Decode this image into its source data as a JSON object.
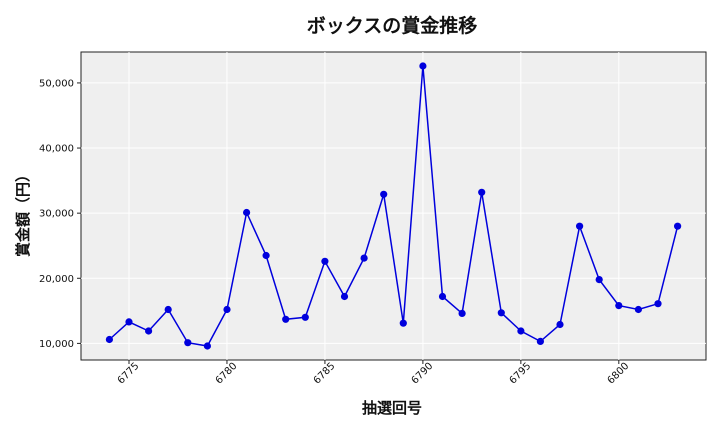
{
  "chart_data": {
    "type": "line",
    "title": "ボックスの賞金推移",
    "xlabel": "抽選回号",
    "ylabel": "賞金額（円）",
    "x": [
      6774,
      6775,
      6776,
      6777,
      6778,
      6779,
      6780,
      6781,
      6782,
      6783,
      6784,
      6785,
      6786,
      6787,
      6788,
      6789,
      6790,
      6791,
      6792,
      6793,
      6794,
      6795,
      6796,
      6797,
      6798,
      6799,
      6800,
      6801,
      6802,
      6803
    ],
    "series": [
      {
        "values": [
          10600,
          13300,
          11900,
          15200,
          10100,
          9600,
          15200,
          30100,
          23500,
          13700,
          14000,
          22600,
          17200,
          23100,
          32900,
          13100,
          52600,
          17200,
          14600,
          33200,
          14700,
          11900,
          10300,
          12900,
          28000,
          19800,
          15800,
          15200,
          16100,
          28000
        ]
      }
    ],
    "xticks": [
      6775,
      6780,
      6785,
      6790,
      6795,
      6800
    ],
    "xtick_labels": [
      "6775",
      "6780",
      "6785",
      "6790",
      "6795",
      "6800"
    ],
    "yticks": [
      10000,
      20000,
      30000,
      40000,
      50000
    ],
    "ytick_labels": [
      "10,000",
      "20,000",
      "30,000",
      "40,000",
      "50,000"
    ],
    "xlim": [
      6772.55,
      6804.45
    ],
    "ylim": [
      7450,
      54750
    ],
    "grid": true,
    "colors": {
      "line": "#0000dd",
      "plot_bg": "#efefef",
      "grid": "#ffffff"
    }
  }
}
